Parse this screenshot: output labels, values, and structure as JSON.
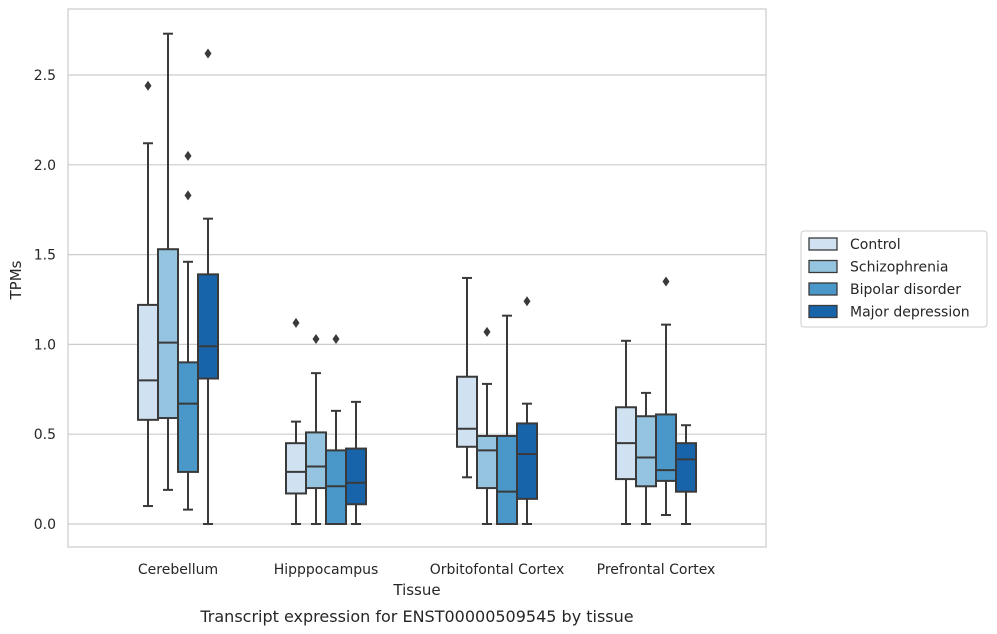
{
  "chart_data": {
    "type": "box",
    "title": "",
    "caption": "Transcript expression for ENST00000509545 by tissue",
    "xlabel": "Tissue",
    "ylabel": "TPMs",
    "ylim": [
      -0.13,
      2.87
    ],
    "yticks": [
      "0.0",
      "0.5",
      "1.0",
      "1.5",
      "2.0",
      "2.5"
    ],
    "grid": "horizontal",
    "legend_position": "right",
    "categories": [
      "Cerebellum",
      "Hipppocampus",
      "Orbitofontal Cortex",
      "Prefrontal Cortex"
    ],
    "series": [
      {
        "name": "Control",
        "color": "#d0e1f2",
        "boxes": [
          {
            "whislo": 0.1,
            "q1": 0.58,
            "med": 0.8,
            "q3": 1.22,
            "whishi": 2.12,
            "fliers": [
              2.44
            ]
          },
          {
            "whislo": 0.0,
            "q1": 0.17,
            "med": 0.29,
            "q3": 0.45,
            "whishi": 0.57,
            "fliers": [
              1.12
            ]
          },
          {
            "whislo": 0.26,
            "q1": 0.43,
            "med": 0.53,
            "q3": 0.82,
            "whishi": 1.37,
            "fliers": []
          },
          {
            "whislo": 0.0,
            "q1": 0.25,
            "med": 0.45,
            "q3": 0.65,
            "whishi": 1.02,
            "fliers": []
          }
        ]
      },
      {
        "name": "Schizophrenia",
        "color": "#94c4df",
        "boxes": [
          {
            "whislo": 0.19,
            "q1": 0.59,
            "med": 1.01,
            "q3": 1.53,
            "whishi": 2.73,
            "fliers": []
          },
          {
            "whislo": 0.0,
            "q1": 0.2,
            "med": 0.32,
            "q3": 0.51,
            "whishi": 0.84,
            "fliers": [
              1.03
            ]
          },
          {
            "whislo": 0.0,
            "q1": 0.2,
            "med": 0.41,
            "q3": 0.49,
            "whishi": 0.78,
            "fliers": [
              1.07
            ]
          },
          {
            "whislo": 0.0,
            "q1": 0.21,
            "med": 0.37,
            "q3": 0.6,
            "whishi": 0.73,
            "fliers": []
          }
        ]
      },
      {
        "name": "Bipolar disorder",
        "color": "#4a98c9",
        "boxes": [
          {
            "whislo": 0.08,
            "q1": 0.29,
            "med": 0.67,
            "q3": 0.9,
            "whishi": 1.46,
            "fliers": [
              1.83,
              2.05
            ]
          },
          {
            "whislo": 0.0,
            "q1": 0.0,
            "med": 0.21,
            "q3": 0.41,
            "whishi": 0.63,
            "fliers": [
              1.03
            ]
          },
          {
            "whislo": 0.0,
            "q1": 0.0,
            "med": 0.18,
            "q3": 0.49,
            "whishi": 1.16,
            "fliers": []
          },
          {
            "whislo": 0.05,
            "q1": 0.24,
            "med": 0.3,
            "q3": 0.61,
            "whishi": 1.11,
            "fliers": [
              1.35
            ]
          }
        ]
      },
      {
        "name": "Major depression",
        "color": "#1764ab",
        "boxes": [
          {
            "whislo": 0.0,
            "q1": 0.81,
            "med": 0.99,
            "q3": 1.39,
            "whishi": 1.7,
            "fliers": [
              2.62
            ]
          },
          {
            "whislo": 0.0,
            "q1": 0.11,
            "med": 0.23,
            "q3": 0.42,
            "whishi": 0.68,
            "fliers": []
          },
          {
            "whislo": 0.0,
            "q1": 0.14,
            "med": 0.39,
            "q3": 0.56,
            "whishi": 0.67,
            "fliers": [
              1.24
            ]
          },
          {
            "whislo": 0.0,
            "q1": 0.18,
            "med": 0.36,
            "q3": 0.45,
            "whishi": 0.55,
            "fliers": []
          }
        ]
      }
    ]
  }
}
